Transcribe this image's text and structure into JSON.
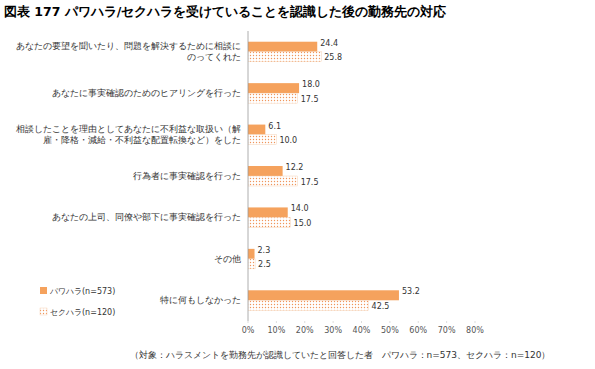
{
  "chart_data": {
    "type": "bar",
    "orientation": "horizontal",
    "title": "図表 177 パワハラ/セクハラを受けていることを認識した後の勤務先の対応",
    "annotation": "（対象：ハラスメントを勤務先が認識していたと回答した者　パワハラ：n=573、セクハラ：n=120）",
    "categories": [
      "あなたの要望を聞いたり、問題を解決するために相談にのってくれた",
      "あなたに事実確認のためのヒアリングを行った",
      "相談したことを理由としてあなたに不利益な取扱い（解雇・降格・減給・不利益な配置転換など）をした",
      "行為者に事実確認を行った",
      "あなたの上司、同僚や部下に事実確認を行った",
      "その他",
      "特に何もしなかった"
    ],
    "series": [
      {
        "name": "パワハラ(n=573)",
        "color": "#f5a25d",
        "values": [
          24.4,
          18.0,
          6.1,
          12.2,
          14.0,
          2.3,
          53.2
        ],
        "value_labels": [
          "24.4",
          "18.0",
          "6.1",
          "12.2",
          "14.0",
          "2.3",
          "53.2"
        ]
      },
      {
        "name": "セクハラ(n=120)",
        "color": "#f0955a",
        "marker": "dotted",
        "values": [
          25.8,
          17.5,
          10.0,
          17.5,
          15.0,
          2.5,
          42.5
        ],
        "value_labels": [
          "25.8",
          "17.5",
          "10.0",
          "17.5",
          "15.0",
          "2.5",
          "42.5"
        ]
      }
    ],
    "xlim": [
      0,
      80
    ],
    "xticks": [
      {
        "value": 0,
        "label": "0%"
      },
      {
        "value": 10,
        "label": "10%"
      },
      {
        "value": 20,
        "label": "20%"
      },
      {
        "value": 30,
        "label": "30%"
      },
      {
        "value": 40,
        "label": "40%"
      },
      {
        "value": 50,
        "label": "50%"
      },
      {
        "value": 60,
        "label": "60%"
      },
      {
        "value": 70,
        "label": "70%"
      },
      {
        "value": 80,
        "label": "80%"
      }
    ],
    "grid": false,
    "legend": "lower-left",
    "data_labels": true
  }
}
